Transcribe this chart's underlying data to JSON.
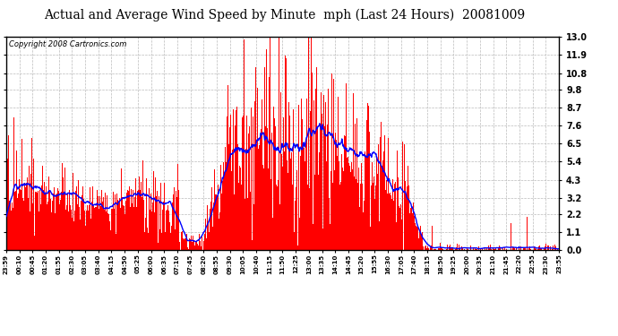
{
  "title": "Actual and Average Wind Speed by Minute  mph (Last 24 Hours)  20081009",
  "copyright": "Copyright 2008 Cartronics.com",
  "yticks": [
    0.0,
    1.1,
    2.2,
    3.2,
    4.3,
    5.4,
    6.5,
    7.6,
    8.7,
    9.8,
    10.8,
    11.9,
    13.0
  ],
  "ylim": [
    0.0,
    13.0
  ],
  "bar_color": "#FF0000",
  "line_color": "#0000FF",
  "bg_color": "#FFFFFF",
  "grid_color": "#BBBBBB",
  "title_fontsize": 10,
  "copyright_fontsize": 6,
  "xtick_labels": [
    "23:59",
    "00:10",
    "00:45",
    "01:20",
    "01:55",
    "02:30",
    "03:05",
    "03:40",
    "04:15",
    "04:50",
    "05:25",
    "06:00",
    "06:35",
    "07:10",
    "07:45",
    "08:20",
    "08:55",
    "09:30",
    "10:05",
    "10:40",
    "11:15",
    "11:50",
    "12:25",
    "13:00",
    "13:35",
    "14:10",
    "14:45",
    "15:20",
    "15:55",
    "16:30",
    "17:05",
    "17:40",
    "18:15",
    "18:50",
    "19:25",
    "20:00",
    "20:35",
    "21:10",
    "21:45",
    "22:20",
    "22:55",
    "23:30",
    "23:55"
  ]
}
